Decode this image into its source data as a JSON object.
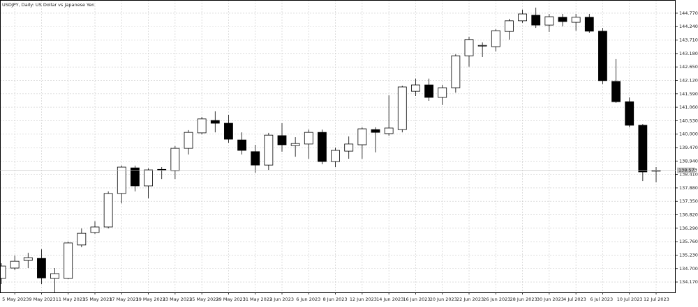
{
  "chart_data": {
    "type": "candlestick",
    "title": "USDJPY, Daily:  US Dollar vs Japanese Yen",
    "categories": [
      null,
      "5 May 2023",
      null,
      "9 May 2023",
      null,
      "11 May 2023",
      null,
      "15 May 2023",
      null,
      "17 May 2023",
      null,
      "19 May 2023",
      null,
      "23 May 2023",
      null,
      "25 May 2023",
      null,
      "29 May 2023",
      null,
      "31 May 2023",
      null,
      "2 Jun 2023",
      null,
      "6 Jun 2023",
      null,
      "8 Jun 2023",
      null,
      "12 Jun 2023",
      null,
      "14 Jun 2023",
      null,
      "16 Jun 2023",
      null,
      "20 Jun 2023",
      null,
      "22 Jun 2023",
      null,
      "26 Jun 2023",
      null,
      "28 Jun 2023",
      null,
      "30 Jun 2023",
      null,
      "4 Jul 2023",
      null,
      "6 Jul 2023",
      null,
      "10 Jul 2023",
      null,
      "12 Jul 2023"
    ],
    "open": [
      134.31,
      134.72,
      135.02,
      135.1,
      134.31,
      134.31,
      135.63,
      136.12,
      136.34,
      137.66,
      138.67,
      137.96,
      138.61,
      138.56,
      139.44,
      140.05,
      140.54,
      140.43,
      139.77,
      139.31,
      138.78,
      139.94,
      139.55,
      139.61,
      140.07,
      138.92,
      139.33,
      139.58,
      140.18,
      140.02,
      140.18,
      141.69,
      141.94,
      141.45,
      141.83,
      143.09,
      143.48,
      143.45,
      144.05,
      144.47,
      144.69,
      144.3,
      144.61,
      144.41,
      144.61,
      144.06,
      142.08,
      141.28,
      140.35,
      138.54
    ],
    "high": [
      134.91,
      135.21,
      135.32,
      135.46,
      134.72,
      135.76,
      136.28,
      136.56,
      137.74,
      138.76,
      138.76,
      138.65,
      138.7,
      139.53,
      140.16,
      140.68,
      140.9,
      140.76,
      140.07,
      139.58,
      140.05,
      140.43,
      139.88,
      140.18,
      140.18,
      139.47,
      139.91,
      140.27,
      140.27,
      141.53,
      141.91,
      142.19,
      142.19,
      141.94,
      143.15,
      143.84,
      143.62,
      144.14,
      144.55,
      144.91,
      144.99,
      144.74,
      144.74,
      144.74,
      144.74,
      144.19,
      142.96,
      141.45,
      140.4,
      138.7
    ],
    "low": [
      134.09,
      134.64,
      134.72,
      134.09,
      133.76,
      134.28,
      135.54,
      136.07,
      136.28,
      137.27,
      137.74,
      137.47,
      138.23,
      138.23,
      139.2,
      139.99,
      140.07,
      139.66,
      139.2,
      138.48,
      138.59,
      139.31,
      139.11,
      139.03,
      138.81,
      138.7,
      139.03,
      139.03,
      139.28,
      139.94,
      140.07,
      141.5,
      141.31,
      141.15,
      141.64,
      142.66,
      143.04,
      143.26,
      143.73,
      144.39,
      144.19,
      144.03,
      144.25,
      144.08,
      144.0,
      141.97,
      141.23,
      140.27,
      138.15,
      138.1
    ],
    "close": [
      134.8,
      134.99,
      135.13,
      134.33,
      134.5,
      135.71,
      136.09,
      136.34,
      137.66,
      138.7,
      137.96,
      138.59,
      138.58,
      139.44,
      140.07,
      140.6,
      140.43,
      139.8,
      139.36,
      138.78,
      139.96,
      139.58,
      139.63,
      140.07,
      138.92,
      139.36,
      139.61,
      140.21,
      140.07,
      140.24,
      141.86,
      141.94,
      141.45,
      141.83,
      143.09,
      143.73,
      143.5,
      144.08,
      144.47,
      144.74,
      144.3,
      144.63,
      144.44,
      144.61,
      144.06,
      142.11,
      141.28,
      140.35,
      138.51,
      138.57
    ],
    "up_color": "#ffffff",
    "down_color": "#000000",
    "ylim": [
      133.76,
      145.29
    ],
    "yticks": [
      {
        "value": 134.17,
        "label": "134.170"
      },
      {
        "value": 134.7,
        "label": "134.700"
      },
      {
        "value": 135.23,
        "label": "135.230"
      },
      {
        "value": 135.76,
        "label": "135.760"
      },
      {
        "value": 136.29,
        "label": "136.290"
      },
      {
        "value": 136.82,
        "label": "136.820"
      },
      {
        "value": 137.35,
        "label": "137.350"
      },
      {
        "value": 137.88,
        "label": "137.880"
      },
      {
        "value": 138.41,
        "label": "138.410"
      },
      {
        "value": 138.94,
        "label": "138.940"
      },
      {
        "value": 139.47,
        "label": "139.470"
      },
      {
        "value": 140.0,
        "label": "140.000"
      },
      {
        "value": 140.53,
        "label": "140.530"
      },
      {
        "value": 141.06,
        "label": "141.060"
      },
      {
        "value": 141.59,
        "label": "141.590"
      },
      {
        "value": 142.12,
        "label": "142.120"
      },
      {
        "value": 142.65,
        "label": "142.650"
      },
      {
        "value": 143.18,
        "label": "143.180"
      },
      {
        "value": 143.71,
        "label": "143.710"
      },
      {
        "value": 144.24,
        "label": "144.240"
      },
      {
        "value": 144.77,
        "label": "144.770"
      }
    ],
    "current_price": {
      "value": 138.573,
      "label": "138.573"
    },
    "grid": true
  }
}
